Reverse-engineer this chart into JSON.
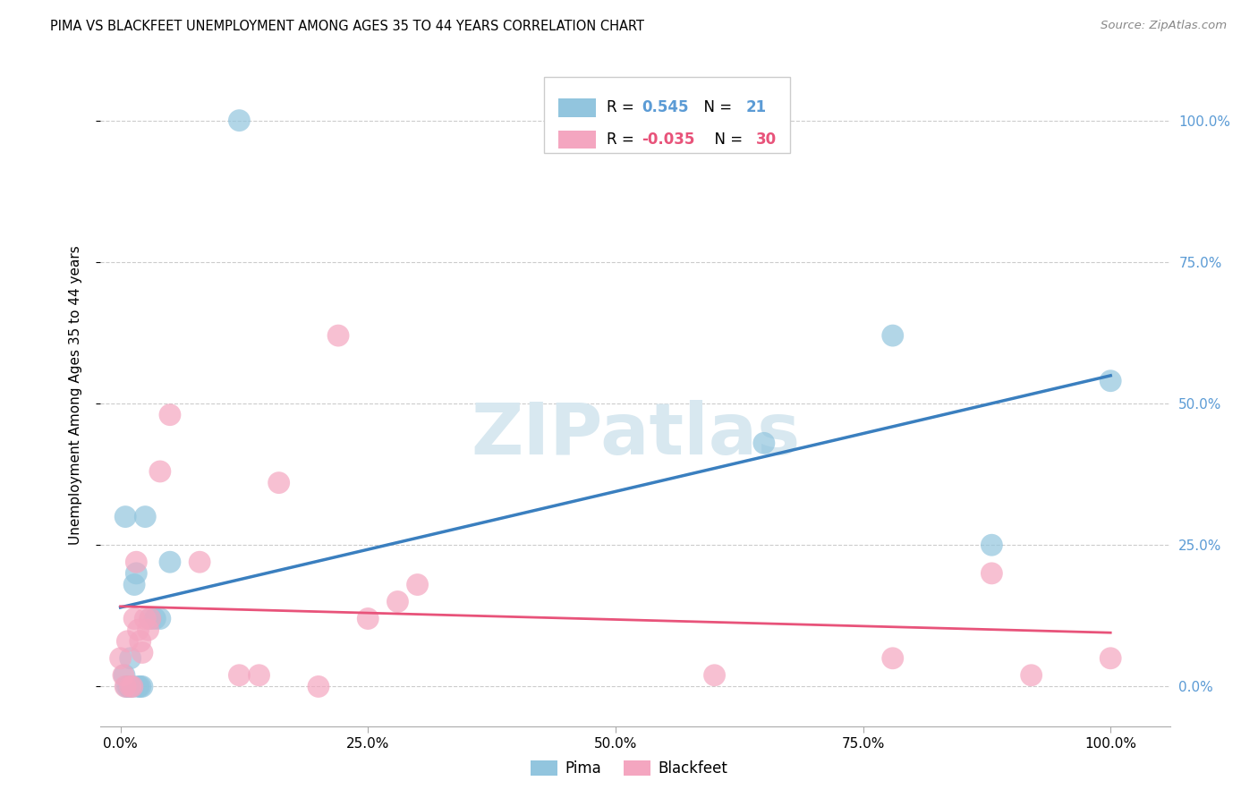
{
  "title": "PIMA VS BLACKFEET UNEMPLOYMENT AMONG AGES 35 TO 44 YEARS CORRELATION CHART",
  "source": "Source: ZipAtlas.com",
  "ylabel": "Unemployment Among Ages 35 to 44 years",
  "pima_R": 0.545,
  "pima_N": 21,
  "blackfeet_R": -0.035,
  "blackfeet_N": 30,
  "pima_color": "#92c5de",
  "blackfeet_color": "#f4a6c0",
  "pima_line_color": "#3a7fbf",
  "blackfeet_line_color": "#e8537a",
  "pima_R_color": "#5b9bd5",
  "blackfeet_R_color": "#e8537a",
  "right_axis_color": "#5b9bd5",
  "watermark_color": "#d8e8f0",
  "pima_x": [
    0.004,
    0.006,
    0.008,
    0.01,
    0.012,
    0.014,
    0.016,
    0.018,
    0.02,
    0.022,
    0.025,
    0.03,
    0.035,
    0.04,
    0.12,
    0.65,
    0.78,
    0.88,
    1.0,
    0.05,
    0.005
  ],
  "pima_y": [
    0.02,
    0.0,
    0.0,
    0.05,
    0.0,
    0.18,
    0.2,
    0.0,
    0.0,
    0.0,
    0.3,
    0.12,
    0.12,
    0.12,
    1.0,
    0.43,
    0.62,
    0.25,
    0.54,
    0.22,
    0.3
  ],
  "blackfeet_x": [
    0.0,
    0.003,
    0.005,
    0.007,
    0.01,
    0.012,
    0.014,
    0.016,
    0.018,
    0.02,
    0.022,
    0.025,
    0.028,
    0.03,
    0.04,
    0.05,
    0.08,
    0.12,
    0.14,
    0.16,
    0.2,
    0.22,
    0.25,
    0.28,
    0.3,
    0.6,
    0.78,
    0.88,
    0.92,
    1.0
  ],
  "blackfeet_y": [
    0.05,
    0.02,
    0.0,
    0.08,
    0.0,
    0.0,
    0.12,
    0.22,
    0.1,
    0.08,
    0.06,
    0.12,
    0.1,
    0.12,
    0.38,
    0.48,
    0.22,
    0.02,
    0.02,
    0.36,
    0.0,
    0.62,
    0.12,
    0.15,
    0.18,
    0.02,
    0.05,
    0.2,
    0.02,
    0.05
  ],
  "x_ticks": [
    0.0,
    0.25,
    0.5,
    0.75,
    1.0
  ],
  "x_tick_labels": [
    "0.0%",
    "25.0%",
    "50.0%",
    "75.0%",
    "100.0%"
  ],
  "y_ticks": [
    0.0,
    0.25,
    0.5,
    0.75,
    1.0
  ],
  "y_tick_labels": [
    "0.0%",
    "25.0%",
    "50.0%",
    "75.0%",
    "100.0%"
  ]
}
